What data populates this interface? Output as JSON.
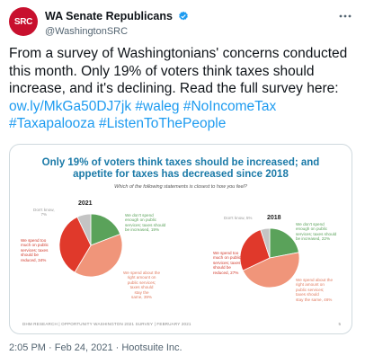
{
  "tweet": {
    "display_name": "WA Senate Republicans",
    "handle": "@WashingtonSRC",
    "avatar_text": "SRC",
    "text_plain": "From a survey of Washingtonians' concerns conducted this month. Only 19% of voters think taxes should increase, and it's declining. Read the full survey here: ",
    "link": "ow.ly/MkGa50DJ7jk",
    "hashtags": [
      "#waleg",
      "#NoIncomeTax",
      "#Taxapalooza",
      "#ListenToThePeople"
    ],
    "timestamp": "2:05 PM · Feb 24, 2021 · Hootsuite Inc."
  },
  "colors": {
    "brand_red": "#c8102e",
    "link_blue": "#1d9bf0",
    "green": "#5aa25a",
    "red": "#e0392b",
    "salmon": "#f0957a",
    "grey": "#c4c4c4"
  },
  "slide": {
    "title_line1": "Only 19% of voters think taxes should be increased; and",
    "title_line2": "appetite for taxes has decreased since 2018",
    "question": "Which of the following statements is closest to how you feel?",
    "footer": "DHM RESEARCH | OPPORTUNITY WASHINGTON 2021 SURVEY | FEBRUARY 2021",
    "page": "5"
  },
  "chart_data": [
    {
      "type": "pie",
      "title": "2021",
      "slices": [
        {
          "label": "We don't spend enough on public services; taxes should be increased",
          "value": 19,
          "color": "#5aa25a"
        },
        {
          "label": "We spend about the right amount on public services; taxes should stay the same",
          "value": 39,
          "color": "#f0957a"
        },
        {
          "label": "We spend too much on public services; taxes should be reduced",
          "value": 34,
          "color": "#e0392b"
        },
        {
          "label": "Don't know",
          "value": 7,
          "color": "#c4c4c4"
        }
      ]
    },
    {
      "type": "pie",
      "title": "2018",
      "slices": [
        {
          "label": "We don't spend enough on public services; taxes should be increased",
          "value": 22,
          "color": "#5aa25a"
        },
        {
          "label": "We spend about the right amount on public services; taxes should stay the same",
          "value": 46,
          "color": "#f0957a"
        },
        {
          "label": "We spend too much on public services; taxes should be reduced",
          "value": 27,
          "color": "#e0392b"
        },
        {
          "label": "Don't know",
          "value": 5,
          "color": "#c4c4c4"
        }
      ]
    }
  ],
  "labels_2021": {
    "green": [
      "We don't spend",
      "enough on public",
      "services; taxes should",
      "be increased, 19%"
    ],
    "salmon": [
      "We spend about the",
      "right amount on",
      "public services;",
      "taxes should",
      "stay the",
      "same, 39%"
    ],
    "red": [
      "We spend too",
      "much on public",
      "services; taxes",
      "should be",
      "reduced, 34%"
    ],
    "grey": [
      "Don't know,",
      "7%"
    ]
  },
  "labels_2018": {
    "green": [
      "We don't spend",
      "enough on public",
      "services; taxes should",
      "be increased, 22%"
    ],
    "salmon": [
      "We spend about the",
      "right amount on",
      "public services;",
      "taxes should",
      "stay the same, 46%"
    ],
    "red": [
      "We spend too",
      "much on public",
      "services; taxes",
      "should be",
      "reduced, 27%"
    ],
    "grey": [
      "Don't know, 5%"
    ]
  }
}
